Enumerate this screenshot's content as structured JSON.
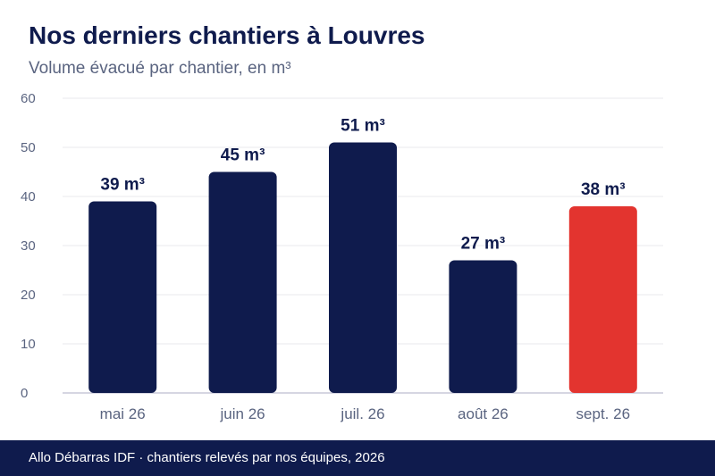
{
  "header": {
    "title": "Nos derniers chantiers à Louvres",
    "subtitle": "Volume évacué par chantier, en m³"
  },
  "footer": {
    "source": "Allo Débarras IDF · chantiers relevés par nos équipes, 2026"
  },
  "colors": {
    "primary_bar": "#0f1b4d",
    "highlight_bar": "#e3342f",
    "grid": "#e8e8ee",
    "axis": "#c8c8d8",
    "tick_text": "#5a6480",
    "label_text": "#0f1b4d"
  },
  "chart_data": {
    "type": "bar",
    "title": "Nos derniers chantiers à Louvres",
    "subtitle": "Volume évacué par chantier, en m³",
    "xlabel": "",
    "ylabel": "",
    "categories": [
      "mai 26",
      "juin 26",
      "juil. 26",
      "août 26",
      "sept. 26"
    ],
    "values": [
      39,
      45,
      51,
      27,
      38
    ],
    "value_labels": [
      "39 m³",
      "45 m³",
      "51 m³",
      "27 m³",
      "38 m³"
    ],
    "highlight_index": 4,
    "ylim": [
      0,
      60
    ],
    "yticks": [
      "0",
      "10",
      "20",
      "30",
      "40",
      "50",
      "60"
    ],
    "grid": true,
    "legend": "none"
  }
}
